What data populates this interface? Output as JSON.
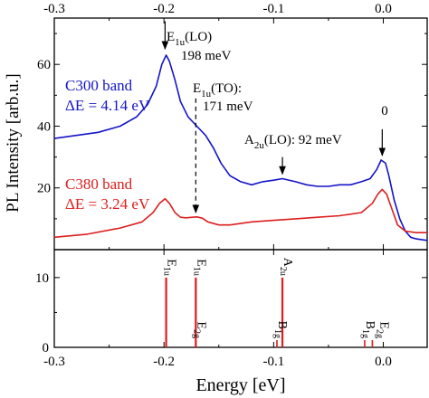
{
  "chart_data": [
    {
      "type": "line",
      "panel": "top",
      "xlim": [
        -0.3,
        0.04
      ],
      "ylim": [
        0,
        75
      ],
      "x_ticks": [
        -0.3,
        -0.2,
        -0.1,
        0.0
      ],
      "x_tick_labels": [
        "-0.3",
        "-0.2",
        "-0.1",
        "0.0"
      ],
      "y_ticks": [
        20,
        40,
        60
      ],
      "y_tick_labels": [
        "20",
        "40",
        "60"
      ],
      "ylabel": "PL Intensity [arb.u.]",
      "series": [
        {
          "name": "C300 band",
          "color": "#1414c8",
          "points": [
            [
              -0.3,
              36
            ],
            [
              -0.28,
              37
            ],
            [
              -0.26,
              38
            ],
            [
              -0.24,
              40
            ],
            [
              -0.225,
              43
            ],
            [
              -0.215,
              47
            ],
            [
              -0.207,
              53
            ],
            [
              -0.202,
              60
            ],
            [
              -0.198,
              63
            ],
            [
              -0.195,
              61
            ],
            [
              -0.19,
              55
            ],
            [
              -0.185,
              48
            ],
            [
              -0.178,
              43
            ],
            [
              -0.17,
              40
            ],
            [
              -0.162,
              37
            ],
            [
              -0.155,
              33
            ],
            [
              -0.148,
              28
            ],
            [
              -0.14,
              24
            ],
            [
              -0.13,
              22
            ],
            [
              -0.12,
              21
            ],
            [
              -0.11,
              22
            ],
            [
              -0.1,
              22.5
            ],
            [
              -0.092,
              23
            ],
            [
              -0.08,
              22
            ],
            [
              -0.07,
              21
            ],
            [
              -0.06,
              20.5
            ],
            [
              -0.05,
              20.5
            ],
            [
              -0.04,
              21
            ],
            [
              -0.03,
              21
            ],
            [
              -0.02,
              22
            ],
            [
              -0.012,
              23
            ],
            [
              -0.006,
              26
            ],
            [
              -0.002,
              29
            ],
            [
              0.002,
              28
            ],
            [
              0.005,
              24
            ],
            [
              0.01,
              16
            ],
            [
              0.015,
              10
            ],
            [
              0.02,
              6
            ],
            [
              0.025,
              4
            ],
            [
              0.03,
              3.5
            ],
            [
              0.04,
              3
            ]
          ]
        },
        {
          "name": "C380 band",
          "color": "#dc1e1e",
          "points": [
            [
              -0.3,
              4
            ],
            [
              -0.27,
              5
            ],
            [
              -0.24,
              7
            ],
            [
              -0.22,
              9
            ],
            [
              -0.21,
              12
            ],
            [
              -0.204,
              15
            ],
            [
              -0.199,
              16.5
            ],
            [
              -0.195,
              15
            ],
            [
              -0.19,
              12
            ],
            [
              -0.185,
              10.5
            ],
            [
              -0.18,
              10.3
            ],
            [
              -0.174,
              10.5
            ],
            [
              -0.17,
              10.6
            ],
            [
              -0.165,
              10.2
            ],
            [
              -0.16,
              9
            ],
            [
              -0.15,
              8
            ],
            [
              -0.14,
              8
            ],
            [
              -0.12,
              9
            ],
            [
              -0.1,
              9.5
            ],
            [
              -0.08,
              10
            ],
            [
              -0.06,
              10.5
            ],
            [
              -0.04,
              11
            ],
            [
              -0.02,
              12
            ],
            [
              -0.01,
              15
            ],
            [
              -0.005,
              18
            ],
            [
              -0.001,
              19.5
            ],
            [
              0.003,
              18
            ],
            [
              0.008,
              13
            ],
            [
              0.013,
              8
            ],
            [
              0.02,
              6
            ],
            [
              0.03,
              5.5
            ],
            [
              0.04,
              5.5
            ]
          ]
        }
      ],
      "legend": [
        {
          "label": "C300 band",
          "sublabel": "ΔE = 4.14 eV",
          "color": "#1414c8"
        },
        {
          "label": "C380 band",
          "sublabel": "ΔE = 3.24 eV",
          "color": "#dc1e1e"
        }
      ],
      "annotations": [
        {
          "id": "e1u-lo",
          "main": "E",
          "sub": "1u",
          "rest": "(LO)",
          "value": "198 meV",
          "x": -0.199,
          "arrow_y_from": 74,
          "arrow_y_to": 65,
          "dashed": false
        },
        {
          "id": "e1u-to",
          "main": "E",
          "sub": "1u",
          "rest": "(TO):",
          "value": "171 meV",
          "x": -0.171,
          "arrow_y_from": 49,
          "arrow_y_to": 12,
          "dashed": true
        },
        {
          "id": "a2u-lo",
          "main": "A",
          "sub": "2u",
          "rest": "(LO): 92 meV",
          "value": "",
          "x": -0.092,
          "arrow_y_from": 30,
          "arrow_y_to": 24.5,
          "dashed": false
        },
        {
          "id": "zero",
          "main": "0",
          "sub": "",
          "rest": "",
          "value": "",
          "x": -0.001,
          "arrow_y_from": 39,
          "arrow_y_to": 30.5,
          "dashed": false
        }
      ]
    },
    {
      "type": "bar",
      "panel": "bottom",
      "xlim": [
        -0.3,
        0.04
      ],
      "ylim": [
        0,
        14
      ],
      "y_ticks": [
        0,
        10
      ],
      "y_tick_labels": [
        "0",
        "10"
      ],
      "x_ticks": [
        -0.3,
        -0.2,
        -0.1,
        0.0
      ],
      "x_tick_labels": [
        "-0.3",
        "-0.2",
        "-0.1",
        "0.0"
      ],
      "xlabel": "Energy [eV]",
      "bar_color": "#dc1e1e",
      "bars": [
        {
          "x": -0.198,
          "value": 10,
          "main": "E",
          "sub": "1u"
        },
        {
          "x": -0.171,
          "value": 10,
          "main": "E",
          "sub": "1u"
        },
        {
          "x": -0.171,
          "value": 0,
          "main": "E",
          "sub": "2g"
        },
        {
          "x": -0.092,
          "value": 10,
          "main": "A",
          "sub": "2u"
        },
        {
          "x": -0.097,
          "value": 0,
          "main": "B",
          "sub": "1g"
        },
        {
          "x": -0.017,
          "value": 0,
          "main": "B",
          "sub": "1g"
        },
        {
          "x": -0.01,
          "value": 0,
          "main": "E",
          "sub": "2g"
        }
      ]
    }
  ]
}
